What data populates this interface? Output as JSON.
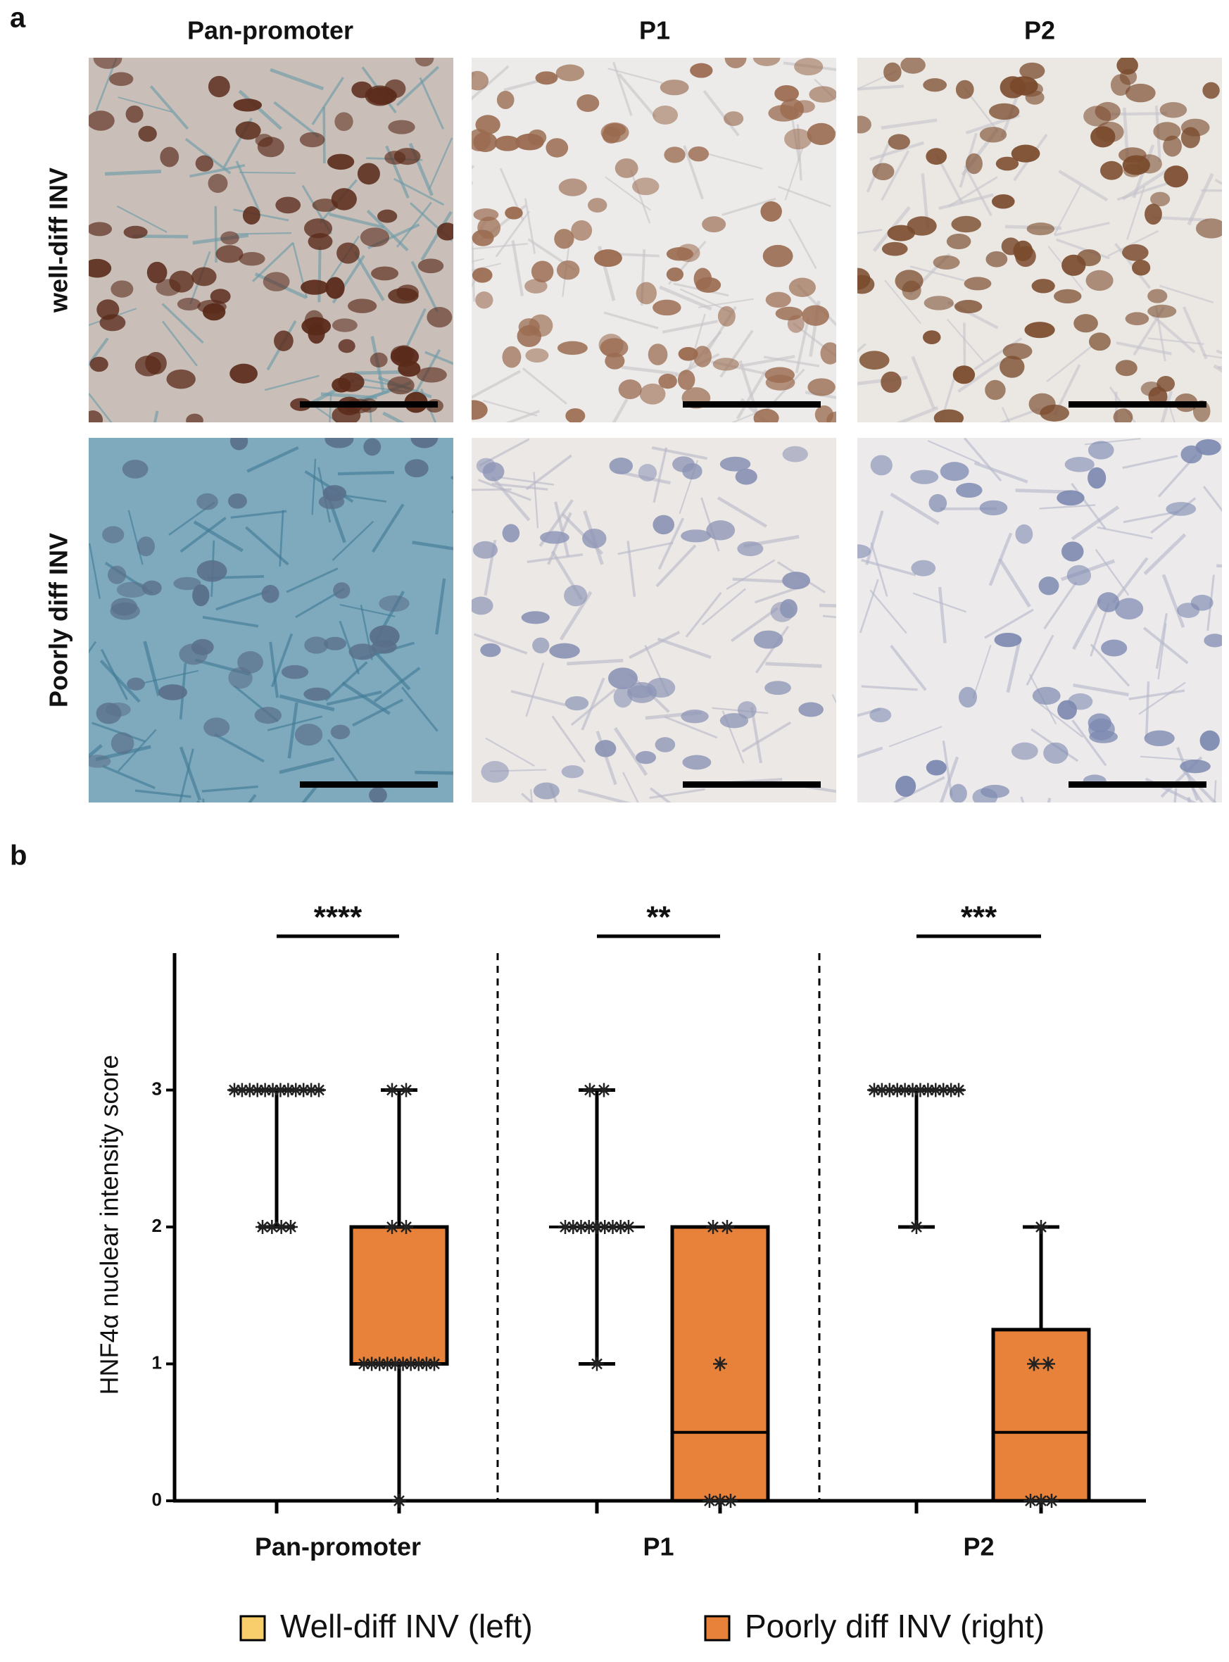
{
  "panel_a": {
    "label": "a",
    "columns": [
      "Pan-promoter",
      "P1",
      "P2"
    ],
    "rows": [
      "well-diff INV",
      "Poorly diff INV"
    ]
  },
  "panel_b": {
    "label": "b"
  },
  "chart_data": {
    "type": "box",
    "y_label": "HNF4α nuclear intensity score",
    "categories": [
      "Pan-promoter",
      "P1",
      "P2"
    ],
    "annotations": [
      "****",
      "**",
      "***"
    ],
    "ylim": [
      0,
      4
    ],
    "yticks": [
      0,
      1,
      2,
      3
    ],
    "series": [
      {
        "name": "Well-diff INV (left)",
        "color": "#f7ce6b",
        "min": [
          2,
          1,
          2
        ],
        "q1": [
          3,
          2,
          3
        ],
        "median": [
          3,
          2,
          3
        ],
        "q3": [
          3,
          2,
          3
        ],
        "max": [
          3,
          3,
          3
        ],
        "points": [
          [
            3,
            3,
            3,
            3,
            3,
            3,
            3,
            3,
            3,
            3,
            3,
            3,
            2,
            2,
            2,
            2
          ],
          [
            3,
            3,
            2,
            2,
            2,
            2,
            2,
            2,
            2,
            2,
            2,
            1
          ],
          [
            3,
            3,
            3,
            3,
            3,
            3,
            3,
            3,
            3,
            3,
            3,
            3,
            2
          ]
        ]
      },
      {
        "name": "Poorly diff INV (right)",
        "color": "#e8823a",
        "min": [
          0,
          0,
          0
        ],
        "q1": [
          1,
          0,
          0
        ],
        "median": [
          1,
          0.5,
          0.5
        ],
        "q3": [
          2,
          2,
          1.25
        ],
        "max": [
          3,
          2,
          2
        ],
        "points": [
          [
            3,
            3,
            2,
            2,
            1,
            1,
            1,
            1,
            1,
            1,
            1,
            1,
            1,
            1,
            0
          ],
          [
            2,
            2,
            1,
            0,
            0,
            0
          ],
          [
            2,
            1,
            1,
            0,
            0,
            0
          ]
        ]
      }
    ]
  }
}
